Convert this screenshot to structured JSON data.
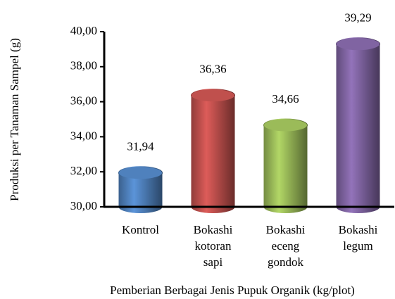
{
  "chart_data": {
    "type": "bar",
    "ylabel": "Produksi per Tanaman Sampel (g)",
    "xlabel": "Pemberian Berbagai Jenis Pupuk Organik (kg/plot)",
    "categories": [
      [
        "Kontrol"
      ],
      [
        "Bokashi",
        "kotoran",
        "sapi"
      ],
      [
        "Bokashi",
        "eceng",
        "gondok"
      ],
      [
        "Bokashi",
        "legum"
      ]
    ],
    "values": [
      31.94,
      36.36,
      34.66,
      39.29
    ],
    "value_labels": [
      "31,94",
      "36,36",
      "34,66",
      "39,29"
    ],
    "colors": [
      "#4f81bd",
      "#c0504d",
      "#9bbb59",
      "#8064a2"
    ],
    "ylim": [
      30,
      40
    ],
    "yticks": [
      {
        "value": 30,
        "label": "30,00"
      },
      {
        "value": 32,
        "label": "32,00"
      },
      {
        "value": 34,
        "label": "34,00"
      },
      {
        "value": 36,
        "label": "36,00"
      },
      {
        "value": 38,
        "label": "38,00"
      },
      {
        "value": 40,
        "label": "40,00"
      }
    ],
    "grid": false
  }
}
